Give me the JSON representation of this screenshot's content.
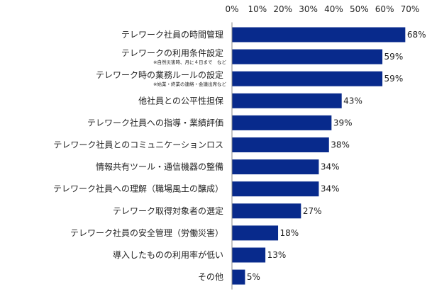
{
  "chart_data": {
    "type": "bar",
    "orientation": "horizontal",
    "title": "",
    "xlabel": "",
    "ylabel": "",
    "xlim": [
      0,
      70
    ],
    "ticks": [
      "0%",
      "10%",
      "20%",
      "30%",
      "40%",
      "50%",
      "60%",
      "70%"
    ],
    "tick_values": [
      0,
      10,
      20,
      30,
      40,
      50,
      60,
      70
    ],
    "bar_color": "#082a8c",
    "grid": false,
    "categories": [
      "テレワーク社員の時間管理",
      "テレワークの利用条件設定",
      "テレワーク時の業務ルールの設定",
      "他社員との公平性担保",
      "テレワーク社員への指導・業績評価",
      "テレワーク社員とのコミュニケーションロス",
      "情報共有ツール・通信機器の整備",
      "テレワーク社員への理解（職場風土の醸成）",
      "テレワーク取得対象者の選定",
      "テレワーク社員の安全管理（労働災害）",
      "導入したものの利用率が低い",
      "その他"
    ],
    "subnotes": [
      "",
      "※自然災害時、月に４日まで　など",
      "※始業・終業の連絡・会議出席など",
      "",
      "",
      "",
      "",
      "",
      "",
      "",
      "",
      ""
    ],
    "values": [
      68,
      59,
      59,
      43,
      39,
      38,
      34,
      34,
      27,
      18,
      13,
      5
    ],
    "value_labels": [
      "68%",
      "59%",
      "59%",
      "43%",
      "39%",
      "38%",
      "34%",
      "34%",
      "27%",
      "18%",
      "13%",
      "5%"
    ]
  }
}
